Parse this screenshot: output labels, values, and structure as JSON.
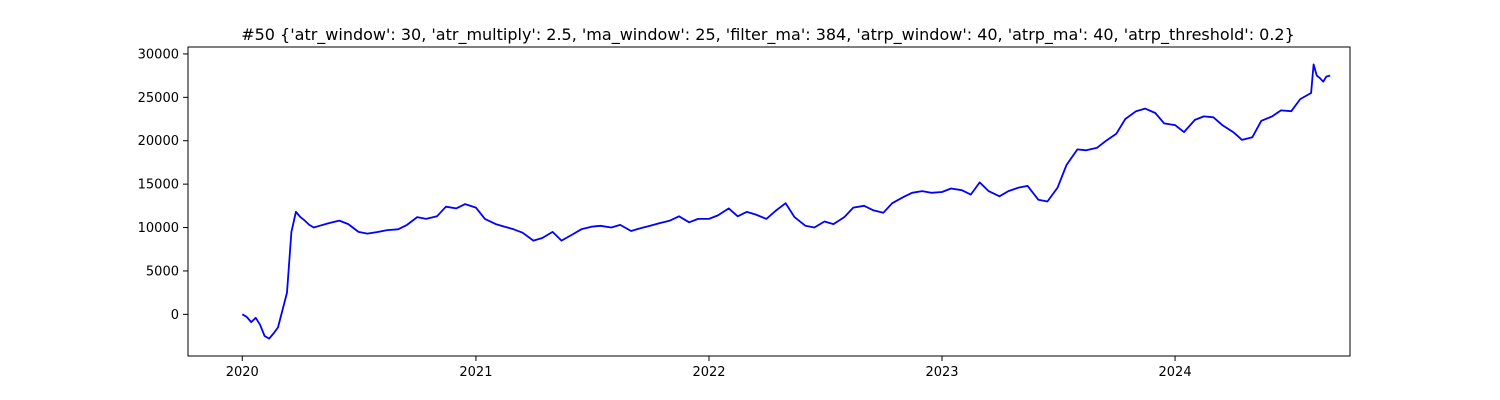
{
  "chart_data": {
    "type": "line",
    "title": "#50 {'atr_window': 30, 'atr_multiply': 2.5, 'ma_window': 25, 'filter_ma': 384, 'atrp_window': 40, 'atrp_ma': 40, 'atrp_threshold': 0.2}",
    "xlabel": "",
    "ylabel": "",
    "grid": false,
    "line_color": "#0000ff",
    "xlim": [
      "2019-10-08",
      "2024-10-01"
    ],
    "ylim": [
      -4800,
      30800
    ],
    "x_ticks": [
      "2020",
      "2021",
      "2022",
      "2023",
      "2024"
    ],
    "x_tick_dates": [
      "2020-01-01",
      "2021-01-01",
      "2022-01-01",
      "2023-01-01",
      "2024-01-01"
    ],
    "y_ticks": [
      "0",
      "5000",
      "10000",
      "15000",
      "20000",
      "25000",
      "30000"
    ],
    "y_tick_values": [
      0,
      5000,
      10000,
      15000,
      20000,
      25000,
      30000
    ],
    "series": [
      {
        "x": [
          "2020-01-01",
          "2020-01-08",
          "2020-01-15",
          "2020-01-22",
          "2020-01-29",
          "2020-02-05",
          "2020-02-12",
          "2020-02-19",
          "2020-02-26",
          "2020-03-04",
          "2020-03-11",
          "2020-03-18",
          "2020-03-25",
          "2020-04-01",
          "2020-04-08",
          "2020-04-15",
          "2020-04-22",
          "2020-05-01",
          "2020-05-15",
          "2020-06-01",
          "2020-06-15",
          "2020-07-01",
          "2020-07-15",
          "2020-08-01",
          "2020-08-15",
          "2020-09-01",
          "2020-09-15",
          "2020-10-01",
          "2020-10-15",
          "2020-11-01",
          "2020-11-15",
          "2020-12-01",
          "2020-12-15",
          "2021-01-01",
          "2021-01-15",
          "2021-02-01",
          "2021-02-15",
          "2021-03-01",
          "2021-03-15",
          "2021-04-01",
          "2021-04-15",
          "2021-05-01",
          "2021-05-15",
          "2021-06-01",
          "2021-06-15",
          "2021-07-01",
          "2021-07-15",
          "2021-08-01",
          "2021-08-15",
          "2021-09-01",
          "2021-09-15",
          "2021-10-01",
          "2021-10-15",
          "2021-11-01",
          "2021-11-15",
          "2021-12-01",
          "2021-12-15",
          "2022-01-01",
          "2022-01-15",
          "2022-02-01",
          "2022-02-15",
          "2022-03-01",
          "2022-03-15",
          "2022-04-01",
          "2022-04-15",
          "2022-05-01",
          "2022-05-15",
          "2022-06-01",
          "2022-06-15",
          "2022-07-01",
          "2022-07-15",
          "2022-08-01",
          "2022-08-15",
          "2022-09-01",
          "2022-09-15",
          "2022-10-01",
          "2022-10-15",
          "2022-11-01",
          "2022-11-15",
          "2022-12-01",
          "2022-12-15",
          "2023-01-01",
          "2023-01-15",
          "2023-02-01",
          "2023-02-15",
          "2023-03-01",
          "2023-03-15",
          "2023-04-01",
          "2023-04-15",
          "2023-05-01",
          "2023-05-15",
          "2023-06-01",
          "2023-06-15",
          "2023-07-01",
          "2023-07-15",
          "2023-08-01",
          "2023-08-15",
          "2023-09-01",
          "2023-09-15",
          "2023-10-01",
          "2023-10-15",
          "2023-11-01",
          "2023-11-15",
          "2023-12-01",
          "2023-12-15",
          "2024-01-01",
          "2024-01-15",
          "2024-02-01",
          "2024-02-15",
          "2024-03-01",
          "2024-03-15",
          "2024-04-01",
          "2024-04-15",
          "2024-05-01",
          "2024-05-15",
          "2024-06-01",
          "2024-06-15",
          "2024-07-01",
          "2024-07-15",
          "2024-08-01",
          "2024-08-05",
          "2024-08-10",
          "2024-08-15",
          "2024-08-20",
          "2024-08-25",
          "2024-08-31"
        ],
        "y": [
          0,
          -300,
          -900,
          -400,
          -1200,
          -2500,
          -2800,
          -2200,
          -1500,
          500,
          2500,
          9500,
          11800,
          11200,
          10800,
          10300,
          10000,
          10200,
          10500,
          10800,
          10400,
          9500,
          9300,
          9500,
          9700,
          9800,
          10300,
          11200,
          11000,
          11300,
          12400,
          12200,
          12700,
          12300,
          11000,
          10400,
          10100,
          9800,
          9400,
          8500,
          8800,
          9500,
          8500,
          9200,
          9800,
          10100,
          10200,
          10000,
          10300,
          9600,
          9900,
          10200,
          10500,
          10800,
          11300,
          10600,
          11000,
          11000,
          11400,
          12200,
          11300,
          11800,
          11500,
          11000,
          11900,
          12800,
          11200,
          10200,
          10000,
          10700,
          10400,
          11200,
          12300,
          12500,
          12000,
          11700,
          12800,
          13500,
          14000,
          14200,
          14000,
          14100,
          14500,
          14300,
          13800,
          15200,
          14200,
          13600,
          14200,
          14600,
          14800,
          13200,
          13000,
          14600,
          17200,
          19000,
          18900,
          19200,
          20000,
          20800,
          22500,
          23400,
          23700,
          23200,
          22000,
          21800,
          21000,
          22400,
          22800,
          22700,
          21800,
          21000,
          20100,
          20400,
          22300,
          22800,
          23500,
          23400,
          24800,
          25500,
          28800,
          27500,
          27200,
          26800,
          27400,
          27500
        ]
      }
    ]
  }
}
